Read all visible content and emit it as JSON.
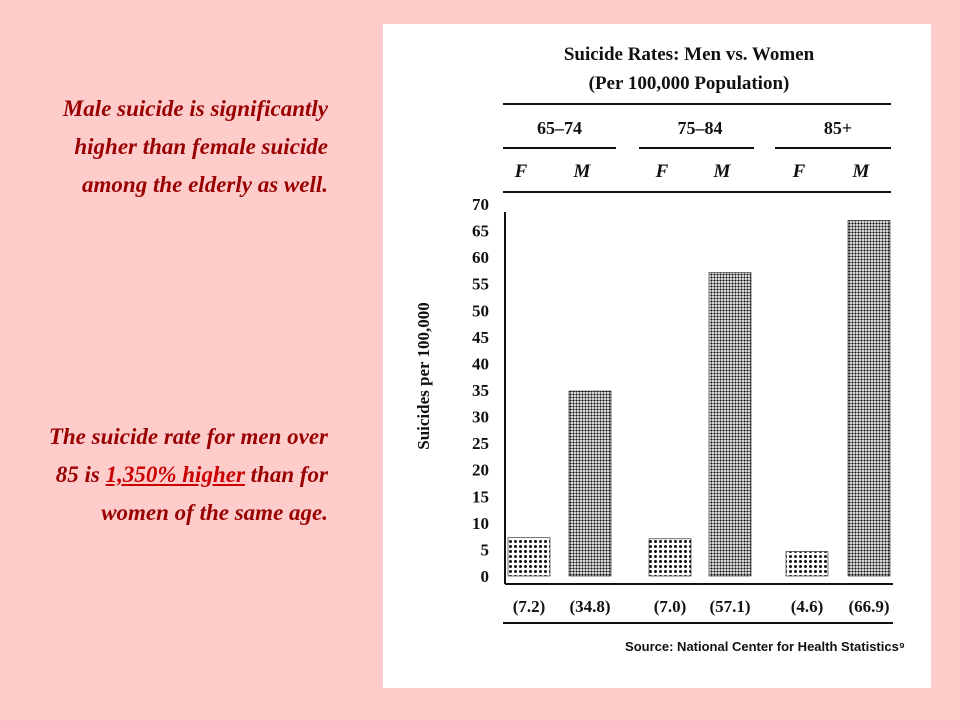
{
  "slide": {
    "paragraph1": "Male suicide is significantly higher than female suicide among the elderly as well.",
    "paragraph2": {
      "before": "The suicide rate for men over 85 is ",
      "emphasis": "1,350% higher",
      "after": " than for women of the same age."
    }
  },
  "colors": {
    "background": "#ffcccc",
    "text": "#990000",
    "emphasis": "#cc0000"
  },
  "chart_data": {
    "type": "bar",
    "title": "Suicide Rates: Men vs. Women",
    "subtitle": "(Per 100,000 Population)",
    "ylabel": "Suicides per 100,000",
    "ylim": [
      0,
      70
    ],
    "yticks": [
      "0",
      "5",
      "10",
      "15",
      "20",
      "25",
      "30",
      "35",
      "40",
      "45",
      "50",
      "55",
      "60",
      "65",
      "70"
    ],
    "groups": [
      {
        "label": "65–74",
        "bars": [
          {
            "sex": "F",
            "value": 7.2,
            "label": "(7.2)"
          },
          {
            "sex": "M",
            "value": 34.8,
            "label": "(34.8)"
          }
        ]
      },
      {
        "label": "75–84",
        "bars": [
          {
            "sex": "F",
            "value": 7.0,
            "label": "(7.0)"
          },
          {
            "sex": "M",
            "value": 57.1,
            "label": "(57.1)"
          }
        ]
      },
      {
        "label": "85+",
        "bars": [
          {
            "sex": "F",
            "value": 4.6,
            "label": "(4.6)"
          },
          {
            "sex": "M",
            "value": 66.9,
            "label": "(66.9)"
          }
        ]
      }
    ],
    "source": "Source: National Center for Health Statistics⁹"
  }
}
